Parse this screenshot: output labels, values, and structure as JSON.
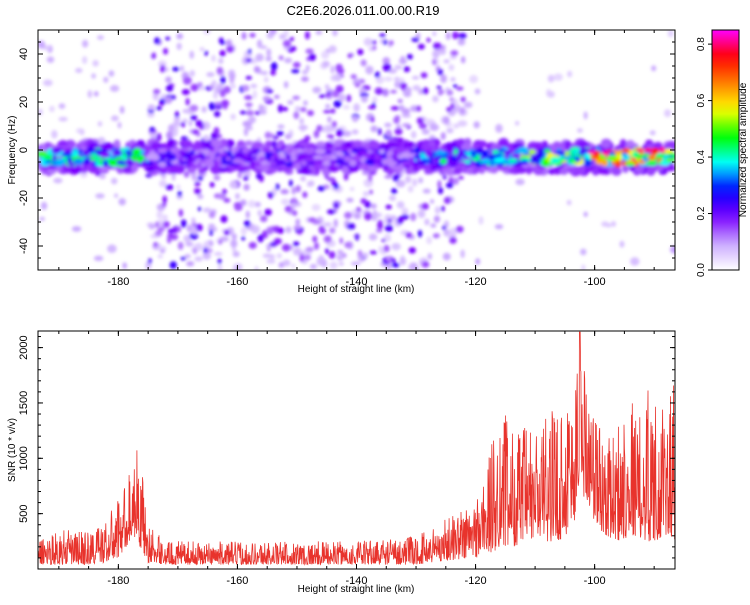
{
  "title": "C2E6.2026.011.00.00.R19",
  "chart_data": [
    {
      "type": "heatmap",
      "title": "",
      "xlabel": "Height of straight line (km)",
      "ylabel": "Frequency (Hz)",
      "xlim": [
        -193.5,
        -86.5
      ],
      "ylim": [
        -50,
        50
      ],
      "xticks": [
        -180,
        -160,
        -140,
        -120,
        -100
      ],
      "yticks": [
        -40,
        -20,
        0,
        20,
        40
      ],
      "xticklabels": [
        "-180",
        "-160",
        "-140",
        "-120",
        "-100"
      ],
      "yticklabels": [
        "-40",
        "-20",
        "0",
        "20",
        "40"
      ],
      "colorbar": {
        "label": "Normalized spectral amplitude",
        "range": [
          0.0,
          0.85
        ],
        "ticks": [
          0.0,
          0.2,
          0.4,
          0.6,
          0.8
        ],
        "ticklabels": [
          "0.0",
          "0.2",
          "0.4",
          "0.6",
          "0.8"
        ],
        "colors": [
          "#ffffff",
          "#c9a8ff",
          "#7a00ff",
          "#0000ff",
          "#00ffff",
          "#00ff00",
          "#ffff00",
          "#ff8000",
          "#ff0000",
          "#ff00ff"
        ]
      },
      "band": {
        "center_freq": -3,
        "segments": [
          {
            "x_start": -193,
            "x_end": -175,
            "intensity": 0.45
          },
          {
            "x_start": -175,
            "x_end": -130,
            "intensity": 0.22
          },
          {
            "x_start": -130,
            "x_end": -112,
            "intensity": 0.4
          },
          {
            "x_start": -112,
            "x_end": -100,
            "intensity": 0.55
          },
          {
            "x_start": -100,
            "x_end": -87,
            "intensity": 0.75
          }
        ],
        "hotspots": [
          {
            "x": -100.5,
            "freq": -1,
            "value": 0.82
          },
          {
            "x": -92.5,
            "freq": 0,
            "value": 0.8
          },
          {
            "x": -91.0,
            "freq": 0,
            "value": 0.8
          }
        ]
      },
      "scatter_region": {
        "x_start": -175,
        "x_end": -122,
        "intensity": 0.2
      }
    },
    {
      "type": "line",
      "title": "",
      "xlabel": "Height of straight line (km)",
      "ylabel": "SNR (10 * v/v)",
      "xlim": [
        -193.5,
        -86.5
      ],
      "ylim": [
        0,
        2150
      ],
      "xticks": [
        -180,
        -160,
        -140,
        -120,
        -100
      ],
      "yticks": [
        500,
        1000,
        1500,
        2000
      ],
      "xticklabels": [
        "-180",
        "-160",
        "-140",
        "-120",
        "-100"
      ],
      "yticklabels": [
        "500",
        "1000",
        "1500",
        "2000"
      ],
      "color": "#e8332c",
      "envelope": {
        "x": [
          -193,
          -190,
          -185,
          -182,
          -180,
          -178,
          -177,
          -176,
          -175,
          -172,
          -165,
          -160,
          -150,
          -140,
          -135,
          -130,
          -127,
          -124,
          -120,
          -117,
          -116,
          -114,
          -110,
          -106,
          -104,
          -103,
          -102.5,
          -101,
          -100,
          -98,
          -96,
          -94,
          -93,
          -92,
          -91,
          -90,
          -88,
          -87
        ],
        "low": [
          40,
          40,
          40,
          60,
          100,
          250,
          300,
          150,
          60,
          40,
          40,
          40,
          40,
          40,
          40,
          40,
          60,
          80,
          100,
          150,
          200,
          200,
          250,
          250,
          350,
          450,
          700,
          600,
          400,
          300,
          250,
          300,
          300,
          250,
          250,
          250,
          300,
          250
        ],
        "high": [
          300,
          350,
          350,
          450,
          650,
          900,
          1150,
          900,
          400,
          250,
          250,
          250,
          250,
          250,
          280,
          300,
          400,
          500,
          650,
          1200,
          1550,
          1300,
          1300,
          1500,
          1700,
          1900,
          2140,
          1700,
          1500,
          1150,
          1350,
          1700,
          1400,
          1400,
          1800,
          1550,
          1400,
          1700
        ]
      },
      "peak": {
        "x": -102.5,
        "y": 2140
      }
    }
  ]
}
